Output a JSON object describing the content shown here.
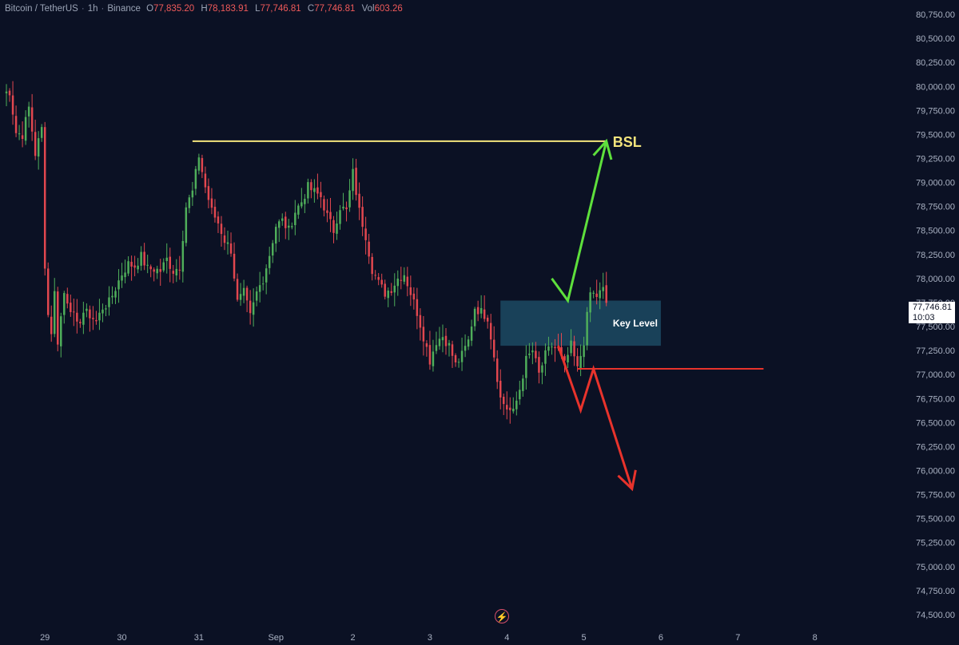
{
  "header": {
    "symbol": "Bitcoin / TetherUS",
    "interval": "1h",
    "exchange": "Binance",
    "open_label": "O",
    "open": "77,835.20",
    "high_label": "H",
    "high": "78,183.91",
    "low_label": "L",
    "low": "77,746.81",
    "close_label": "C",
    "close": "77,746.81",
    "volume_label": "Vol",
    "volume": "603.26"
  },
  "price_tag": {
    "price": "77,746.81",
    "countdown": "10:03"
  },
  "colors": {
    "background": "#0b1124",
    "up": "#4fae5a",
    "down": "#e2474f",
    "bsl_line": "#f3e47c",
    "key_level_zone": "#1c4a63",
    "arrow_up": "#5ee03c",
    "arrow_down": "#e8332c",
    "axis_text": "#aab2c3"
  },
  "bolt_icon": "lightning-icon",
  "chart_data": {
    "type": "candlestick",
    "title": "",
    "y_axis": {
      "range": [
        74400,
        80900
      ],
      "tick_labels": [
        "80,750.00",
        "80,500.00",
        "80,250.00",
        "80,000.00",
        "79,750.00",
        "79,500.00",
        "79,250.00",
        "79,000.00",
        "78,750.00",
        "78,500.00",
        "78,250.00",
        "78,000.00",
        "77,750.00",
        "77,500.00",
        "77,250.00",
        "77,000.00",
        "76,750.00",
        "76,500.00",
        "76,250.00",
        "76,000.00",
        "75,750.00",
        "75,500.00",
        "75,250.00",
        "75,000.00",
        "74,750.00",
        "74,500.00"
      ],
      "tick_values": [
        80750,
        80500,
        80250,
        80000,
        79750,
        79500,
        79250,
        79000,
        78750,
        78500,
        78250,
        78000,
        77750,
        77500,
        77250,
        77000,
        76750,
        76500,
        76250,
        76000,
        75750,
        75500,
        75250,
        75000,
        74750,
        74500
      ]
    },
    "x_axis": {
      "tick_labels": [
        "29",
        "30",
        "31",
        "Sep",
        "2",
        "3",
        "4",
        "5",
        "6",
        "7",
        "8"
      ],
      "tick_values": [
        0,
        24,
        48,
        72,
        96,
        120,
        144,
        168,
        192,
        216,
        240
      ],
      "unit": "hours from 29 00:00",
      "range": [
        -14,
        265
      ]
    },
    "candle_key_points": [
      [
        -13,
        79930
      ],
      [
        -11,
        79950
      ],
      [
        -9,
        79520
      ],
      [
        -7,
        79500
      ],
      [
        -5,
        79780
      ],
      [
        -3,
        79300
      ],
      [
        -1,
        79560
      ],
      [
        0,
        78150
      ],
      [
        1,
        77620
      ],
      [
        2,
        77450
      ],
      [
        3,
        77850
      ],
      [
        4,
        77350
      ],
      [
        5,
        77600
      ],
      [
        6,
        77850
      ],
      [
        8,
        77700
      ],
      [
        10,
        77500
      ],
      [
        12,
        77650
      ],
      [
        14,
        77620
      ],
      [
        16,
        77550
      ],
      [
        18,
        77700
      ],
      [
        20,
        77750
      ],
      [
        22,
        77900
      ],
      [
        24,
        78050
      ],
      [
        26,
        78150
      ],
      [
        28,
        78130
      ],
      [
        30,
        78230
      ],
      [
        32,
        78100
      ],
      [
        34,
        78100
      ],
      [
        36,
        78080
      ],
      [
        38,
        78200
      ],
      [
        40,
        78080
      ],
      [
        42,
        78130
      ],
      [
        44,
        78750
      ],
      [
        46,
        78900
      ],
      [
        48,
        79280
      ],
      [
        50,
        78950
      ],
      [
        52,
        78700
      ],
      [
        54,
        78580
      ],
      [
        56,
        78400
      ],
      [
        58,
        78300
      ],
      [
        60,
        77750
      ],
      [
        62,
        77850
      ],
      [
        64,
        77600
      ],
      [
        66,
        77850
      ],
      [
        68,
        78000
      ],
      [
        70,
        78250
      ],
      [
        72,
        78550
      ],
      [
        74,
        78600
      ],
      [
        76,
        78500
      ],
      [
        78,
        78700
      ],
      [
        80,
        78800
      ],
      [
        82,
        78950
      ],
      [
        84,
        78900
      ],
      [
        86,
        78850
      ],
      [
        88,
        78650
      ],
      [
        90,
        78500
      ],
      [
        92,
        78750
      ],
      [
        94,
        78700
      ],
      [
        96,
        79100
      ],
      [
        98,
        78700
      ],
      [
        100,
        78450
      ],
      [
        102,
        78100
      ],
      [
        104,
        77950
      ],
      [
        106,
        77850
      ],
      [
        108,
        77900
      ],
      [
        110,
        78000
      ],
      [
        112,
        78050
      ],
      [
        114,
        77850
      ],
      [
        116,
        77650
      ],
      [
        118,
        77400
      ],
      [
        120,
        77150
      ],
      [
        122,
        77350
      ],
      [
        124,
        77400
      ],
      [
        126,
        77300
      ],
      [
        128,
        77100
      ],
      [
        130,
        77200
      ],
      [
        132,
        77350
      ],
      [
        134,
        77700
      ],
      [
        136,
        77650
      ],
      [
        138,
        77600
      ],
      [
        140,
        77200
      ],
      [
        142,
        76750
      ],
      [
        144,
        76650
      ],
      [
        146,
        76600
      ],
      [
        148,
        76850
      ],
      [
        150,
        77150
      ],
      [
        152,
        77250
      ],
      [
        154,
        77000
      ],
      [
        156,
        77200
      ],
      [
        158,
        77300
      ],
      [
        160,
        77250
      ],
      [
        162,
        77100
      ],
      [
        164,
        77300
      ],
      [
        166,
        77050
      ],
      [
        168,
        77350
      ],
      [
        170,
        77850
      ],
      [
        172,
        77820
      ],
      [
        174,
        77880
      ],
      [
        175,
        77746.81
      ]
    ],
    "annotations": [
      {
        "type": "hline",
        "label": "BSL",
        "y": 79430,
        "x_start": 46,
        "x_end": 175
      },
      {
        "type": "zone",
        "label": "Key Level",
        "y_top": 77770,
        "y_bottom": 77300,
        "x_start": 142,
        "x_end": 192
      },
      {
        "type": "hline",
        "label": "",
        "y": 77060,
        "x_start": 166,
        "x_end": 224
      },
      {
        "type": "arrow",
        "direction": "up",
        "points": [
          [
            158,
            78000
          ],
          [
            163,
            77770
          ],
          [
            175,
            79430
          ]
        ]
      },
      {
        "type": "arrow",
        "direction": "down",
        "points": [
          [
            160,
            77300
          ],
          [
            167,
            76630
          ],
          [
            171,
            77060
          ],
          [
            183,
            75810
          ]
        ]
      }
    ]
  }
}
